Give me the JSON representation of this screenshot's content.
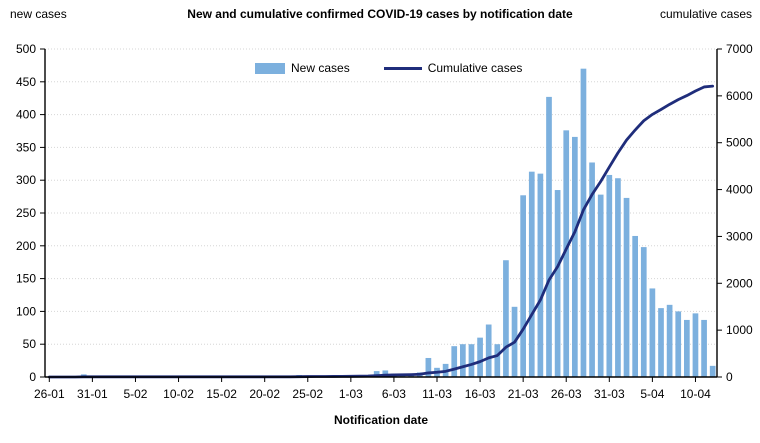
{
  "header": {
    "left_axis_label": "new cases",
    "title": "New and cumulative confirmed COVID-19 cases by notification date",
    "right_axis_label": "cumulative cases"
  },
  "legend": {
    "new_cases_label": "New cases",
    "cumulative_label": "Cumulative cases"
  },
  "chart_data": {
    "type": "bar+line",
    "title": "New and cumulative confirmed COVID-19 cases by notification date",
    "xlabel": "Notification date",
    "grid": "horizontal",
    "legend_position": "top-center",
    "left_axis": {
      "label": "new cases",
      "min": 0,
      "max": 500,
      "ticks": [
        0,
        50,
        100,
        150,
        200,
        250,
        300,
        350,
        400,
        450,
        500
      ]
    },
    "right_axis": {
      "label": "cumulative cases",
      "min": 0,
      "max": 7000,
      "ticks": [
        0,
        1000,
        2000,
        3000,
        4000,
        5000,
        6000,
        7000
      ]
    },
    "x_tick_every": 5,
    "x_tick_labels": [
      "26-01",
      "31-01",
      "5-02",
      "10-02",
      "15-02",
      "20-02",
      "25-02",
      "1-03",
      "6-03",
      "11-03",
      "16-03",
      "21-03",
      "26-03",
      "31-03",
      "5-04",
      "10-04"
    ],
    "dates": [
      "26-01",
      "27-01",
      "28-01",
      "29-01",
      "30-01",
      "31-01",
      "1-02",
      "2-02",
      "3-02",
      "4-02",
      "5-02",
      "6-02",
      "7-02",
      "8-02",
      "9-02",
      "10-02",
      "11-02",
      "12-02",
      "13-02",
      "14-02",
      "15-02",
      "16-02",
      "17-02",
      "18-02",
      "19-02",
      "20-02",
      "21-02",
      "22-02",
      "23-02",
      "24-02",
      "25-02",
      "26-02",
      "27-02",
      "28-02",
      "29-02",
      "1-03",
      "2-03",
      "3-03",
      "4-03",
      "5-03",
      "6-03",
      "7-03",
      "8-03",
      "9-03",
      "10-03",
      "11-03",
      "12-03",
      "13-03",
      "14-03",
      "15-03",
      "16-03",
      "17-03",
      "18-03",
      "19-03",
      "20-03",
      "21-03",
      "22-03",
      "23-03",
      "24-03",
      "25-03",
      "26-03",
      "27-03",
      "28-03",
      "29-03",
      "30-03",
      "31-03",
      "1-04",
      "2-04",
      "3-04",
      "4-04",
      "5-04",
      "6-04",
      "7-04",
      "8-04",
      "9-04",
      "10-04",
      "11-04",
      "12-04"
    ],
    "series": [
      {
        "name": "New cases",
        "kind": "bar",
        "axis": "left",
        "color": "#7CB0DE",
        "values": [
          0,
          0,
          0,
          0,
          4,
          0,
          0,
          0,
          0,
          0,
          0,
          0,
          0,
          0,
          0,
          0,
          0,
          0,
          0,
          0,
          0,
          0,
          0,
          0,
          0,
          0,
          0,
          0,
          0,
          3,
          2,
          1,
          1,
          1,
          1,
          2,
          2,
          3,
          9,
          10,
          5,
          4,
          3,
          7,
          29,
          14,
          20,
          47,
          50,
          50,
          60,
          80,
          50,
          178,
          107,
          277,
          313,
          310,
          427,
          285,
          376,
          366,
          470,
          327,
          278,
          308,
          303,
          273,
          215,
          198,
          135,
          105,
          110,
          100,
          87,
          97,
          87,
          17
        ]
      },
      {
        "name": "Cumulative cases",
        "kind": "line",
        "axis": "right",
        "color": "#1F2D7B",
        "values": [
          0,
          0,
          0,
          0,
          4,
          4,
          4,
          4,
          4,
          4,
          4,
          4,
          4,
          4,
          4,
          4,
          4,
          4,
          4,
          4,
          4,
          4,
          4,
          4,
          4,
          4,
          4,
          4,
          4,
          7,
          9,
          10,
          11,
          12,
          13,
          15,
          17,
          20,
          29,
          39,
          44,
          48,
          51,
          58,
          87,
          101,
          121,
          168,
          218,
          268,
          328,
          408,
          458,
          636,
          743,
          1020,
          1333,
          1643,
          2070,
          2355,
          2731,
          3097,
          3567,
          3894,
          4172,
          4480,
          4783,
          5056,
          5271,
          5469,
          5604,
          5709,
          5819,
          5919,
          6006,
          6103,
          6190,
          6207
        ]
      }
    ],
    "colors": {
      "bar_fill": "#7CB0DE",
      "line": "#1F2D7B",
      "grid": "#D6D6D6",
      "axis": "#000000",
      "text": "#000000"
    }
  }
}
